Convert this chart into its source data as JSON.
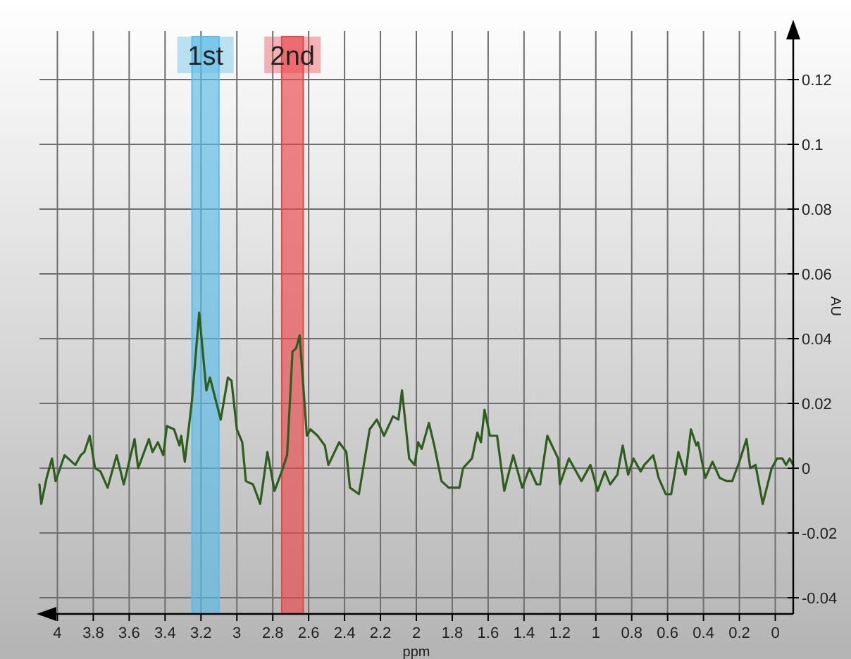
{
  "chart_data": {
    "type": "line",
    "xlabel": "ppm",
    "ylabel": "AU",
    "xlim": [
      4.1,
      -0.1
    ],
    "ylim": [
      -0.045,
      0.135
    ],
    "xticks": [
      4,
      3.8,
      3.6,
      3.4,
      3.2,
      3,
      2.8,
      2.6,
      2.4,
      2.2,
      2,
      1.8,
      1.6,
      1.4,
      1.2,
      1,
      0.8,
      0.6,
      0.4,
      0.2,
      0
    ],
    "yticks": [
      -0.04,
      -0.02,
      0,
      0.02,
      0.04,
      0.06,
      0.08,
      0.1,
      0.12
    ],
    "grid": true,
    "marker": "none",
    "line_style": "solid",
    "bands": [
      {
        "axis": "x",
        "from": 3.25,
        "to": 3.1,
        "label": "1st",
        "color": "#5bbbe6"
      },
      {
        "axis": "x",
        "from": 2.75,
        "to": 2.63,
        "label": "2nd",
        "color": "#e8474a"
      }
    ],
    "series": [
      {
        "color": "#2e5e1e",
        "x": [
          4.1,
          4.09,
          4.06,
          4.03,
          4.01,
          3.96,
          3.9,
          3.87,
          3.85,
          3.82,
          3.79,
          3.76,
          3.72,
          3.67,
          3.63,
          3.57,
          3.55,
          3.49,
          3.47,
          3.44,
          3.41,
          3.39,
          3.35,
          3.32,
          3.31,
          3.29,
          3.25,
          3.21,
          3.17,
          3.15,
          3.09,
          3.05,
          3.03,
          3,
          2.97,
          2.95,
          2.91,
          2.87,
          2.83,
          2.79,
          2.75,
          2.72,
          2.69,
          2.67,
          2.65,
          2.61,
          2.59,
          2.55,
          2.51,
          2.49,
          2.43,
          2.39,
          2.37,
          2.32,
          2.26,
          2.22,
          2.18,
          2.13,
          2.1,
          2.08,
          2.04,
          2.01,
          1.99,
          1.97,
          1.93,
          1.9,
          1.86,
          1.82,
          1.76,
          1.74,
          1.69,
          1.66,
          1.64,
          1.62,
          1.59,
          1.55,
          1.51,
          1.46,
          1.41,
          1.37,
          1.33,
          1.31,
          1.27,
          1.21,
          1.2,
          1.15,
          1.12,
          1.08,
          1.03,
          0.99,
          0.95,
          0.92,
          0.88,
          0.85,
          0.82,
          0.79,
          0.75,
          0.73,
          0.68,
          0.65,
          0.61,
          0.58,
          0.54,
          0.5,
          0.47,
          0.44,
          0.43,
          0.39,
          0.35,
          0.31,
          0.27,
          0.24,
          0.2,
          0.16,
          0.14,
          0.11,
          0.07,
          0.02,
          -0.01,
          -0.04,
          -0.06,
          -0.08,
          -0.1
        ],
        "values": [
          -0.005,
          -0.011,
          -0.003,
          0.003,
          -0.004,
          0.004,
          0.001,
          0.004,
          0.005,
          0.01,
          0,
          -0.001,
          -0.006,
          0.004,
          -0.005,
          0.009,
          0,
          0.009,
          0.005,
          0.008,
          0.004,
          0.013,
          0.012,
          0.007,
          0.01,
          0.002,
          0.021,
          0.048,
          0.024,
          0.028,
          0.015,
          0.028,
          0.027,
          0.012,
          0.008,
          -0.004,
          -0.005,
          -0.011,
          0.005,
          -0.007,
          -0.001,
          0.004,
          0.036,
          0.037,
          0.041,
          0.01,
          0.012,
          0.01,
          0.007,
          0.001,
          0.008,
          0.005,
          -0.006,
          -0.008,
          0.012,
          0.015,
          0.01,
          0.016,
          0.015,
          0.024,
          0.003,
          0.001,
          0.008,
          0.006,
          0.014,
          0.007,
          -0.004,
          -0.006,
          -0.006,
          0,
          0.003,
          0.011,
          0.008,
          0.018,
          0.01,
          0.01,
          -0.007,
          0.004,
          -0.006,
          0,
          -0.005,
          -0.005,
          0.01,
          0.003,
          -0.005,
          0.003,
          0,
          -0.004,
          0.001,
          -0.007,
          -0.001,
          -0.005,
          -0.002,
          0.007,
          -0.002,
          0.003,
          -0.001,
          0.001,
          0.004,
          -0.003,
          -0.008,
          -0.008,
          0.005,
          -0.002,
          0.012,
          0.007,
          0.008,
          -0.003,
          0.002,
          -0.003,
          -0.004,
          -0.004,
          0.002,
          0.009,
          0,
          0.001,
          -0.011,
          0,
          0.003,
          0.003,
          0.001,
          0.003,
          0.001
        ]
      }
    ]
  }
}
